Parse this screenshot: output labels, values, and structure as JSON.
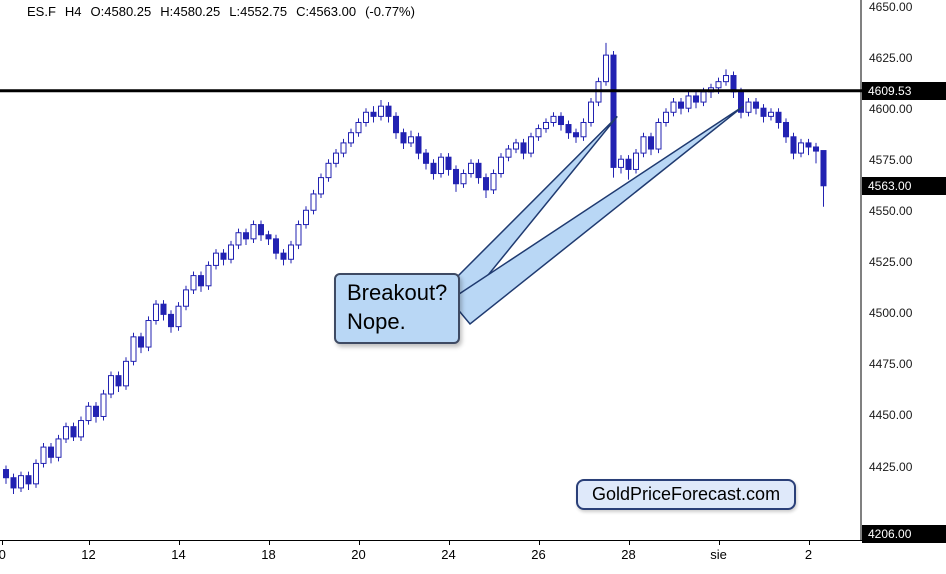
{
  "header": {
    "symbol": "ES.F",
    "timeframe": "H4",
    "open": "O:4580.25",
    "high": "H:4580.25",
    "low": "L:4552.75",
    "close": "C:4563.00",
    "change": "(-0.77%)"
  },
  "annotation": {
    "line1": "Breakout?",
    "line2": "Nope."
  },
  "watermark": "GoldPriceForecast.com",
  "price_markers": [
    {
      "type": "resistance",
      "label": "4609.53",
      "value": 4609.53
    },
    {
      "type": "last",
      "label": "4563.00",
      "value": 4563.0
    },
    {
      "type": "bottom",
      "label": "4206.00",
      "value": 4206.0
    }
  ],
  "colors": {
    "candle": "#2222b2",
    "candle_up_fill": "#ffffff",
    "marker_bg": "#000000",
    "marker_text": "#ffffff",
    "callout_fill": "#b9d7f5",
    "callout_border": "#3e4a63",
    "pointer_stroke": "#1f3a70",
    "resistance": "#000000"
  },
  "chart_data": {
    "type": "candlestick",
    "title": "ES.F H4 with resistance at 4609.53 — failed breakout annotation",
    "symbol": "ES.F",
    "timeframe": "H4",
    "ylim": [
      4389,
      4654
    ],
    "resistance_level": 4609.53,
    "last_price": 4563.0,
    "yticks": [
      {
        "label": "4650.00",
        "value": 4650
      },
      {
        "label": "4625.00",
        "value": 4625
      },
      {
        "label": "4600.00",
        "value": 4600
      },
      {
        "label": "4575.00",
        "value": 4575
      },
      {
        "label": "4550.00",
        "value": 4550
      },
      {
        "label": "4525.00",
        "value": 4525
      },
      {
        "label": "4500.00",
        "value": 4500
      },
      {
        "label": "4475.00",
        "value": 4475
      },
      {
        "label": "4450.00",
        "value": 4450
      },
      {
        "label": "4425.00",
        "value": 4425
      }
    ],
    "xticks": [
      {
        "label": "0",
        "index": -0.5
      },
      {
        "label": "12",
        "index": 11
      },
      {
        "label": "14",
        "index": 23
      },
      {
        "label": "18",
        "index": 35
      },
      {
        "label": "20",
        "index": 47
      },
      {
        "label": "24",
        "index": 59
      },
      {
        "label": "26",
        "index": 71
      },
      {
        "label": "28",
        "index": 83
      },
      {
        "label": "sie",
        "index": 95
      },
      {
        "label": "2",
        "index": 107
      }
    ],
    "pointer_targets": [
      {
        "index": 81.5,
        "price": 4597
      },
      {
        "index": 98.3,
        "price": 4602
      }
    ],
    "candles": [
      [
        4424,
        4426,
        4417,
        4420
      ],
      [
        4420,
        4422,
        4412,
        4415
      ],
      [
        4415,
        4423,
        4413,
        4421
      ],
      [
        4421,
        4423,
        4414,
        4417
      ],
      [
        4417,
        4429,
        4415,
        4427
      ],
      [
        4427,
        4437,
        4425,
        4435
      ],
      [
        4435,
        4437,
        4427,
        4430
      ],
      [
        4430,
        4441,
        4428,
        4439
      ],
      [
        4439,
        4447,
        4437,
        4445
      ],
      [
        4445,
        4447,
        4438,
        4440
      ],
      [
        4440,
        4450,
        4438,
        4448
      ],
      [
        4448,
        4457,
        4446,
        4455
      ],
      [
        4455,
        4457,
        4447,
        4450
      ],
      [
        4450,
        4463,
        4448,
        4461
      ],
      [
        4461,
        4472,
        4459,
        4470
      ],
      [
        4470,
        4472,
        4462,
        4465
      ],
      [
        4465,
        4479,
        4463,
        4477
      ],
      [
        4477,
        4491,
        4475,
        4489
      ],
      [
        4489,
        4491,
        4481,
        4484
      ],
      [
        4484,
        4499,
        4482,
        4497
      ],
      [
        4497,
        4507,
        4495,
        4505
      ],
      [
        4505,
        4507,
        4497,
        4500
      ],
      [
        4500,
        4502,
        4491,
        4494
      ],
      [
        4494,
        4506,
        4492,
        4504
      ],
      [
        4504,
        4514,
        4502,
        4512
      ],
      [
        4512,
        4521,
        4510,
        4519
      ],
      [
        4519,
        4521,
        4511,
        4514
      ],
      [
        4514,
        4526,
        4512,
        4524
      ],
      [
        4524,
        4532,
        4522,
        4530
      ],
      [
        4530,
        4532,
        4524,
        4527
      ],
      [
        4527,
        4536,
        4525,
        4534
      ],
      [
        4534,
        4542,
        4532,
        4540
      ],
      [
        4540,
        4542,
        4534,
        4537
      ],
      [
        4537,
        4546,
        4535,
        4544
      ],
      [
        4544,
        4546,
        4536,
        4539
      ],
      [
        4539,
        4541,
        4534,
        4537
      ],
      [
        4537,
        4539,
        4527,
        4530
      ],
      [
        4530,
        4532,
        4524,
        4527
      ],
      [
        4527,
        4536,
        4525,
        4534
      ],
      [
        4534,
        4546,
        4532,
        4544
      ],
      [
        4544,
        4553,
        4542,
        4551
      ],
      [
        4551,
        4561,
        4549,
        4559
      ],
      [
        4559,
        4569,
        4557,
        4567
      ],
      [
        4567,
        4576,
        4565,
        4574
      ],
      [
        4574,
        4581,
        4572,
        4579
      ],
      [
        4579,
        4586,
        4577,
        4584
      ],
      [
        4584,
        4591,
        4582,
        4589
      ],
      [
        4589,
        4596,
        4587,
        4594
      ],
      [
        4594,
        4601,
        4592,
        4599
      ],
      [
        4599,
        4602,
        4594,
        4597
      ],
      [
        4597,
        4605,
        4595,
        4602
      ],
      [
        4602,
        4604,
        4594,
        4597
      ],
      [
        4597,
        4599,
        4586,
        4589
      ],
      [
        4589,
        4591,
        4581,
        4584
      ],
      [
        4584,
        4590,
        4582,
        4587
      ],
      [
        4587,
        4589,
        4576,
        4579
      ],
      [
        4579,
        4581,
        4571,
        4574
      ],
      [
        4574,
        4576,
        4566,
        4569
      ],
      [
        4569,
        4579,
        4567,
        4577
      ],
      [
        4577,
        4579,
        4568,
        4571
      ],
      [
        4571,
        4573,
        4560,
        4564
      ],
      [
        4564,
        4571,
        4562,
        4569
      ],
      [
        4569,
        4576,
        4567,
        4574
      ],
      [
        4574,
        4576,
        4564,
        4567
      ],
      [
        4567,
        4569,
        4557,
        4561
      ],
      [
        4561,
        4571,
        4559,
        4569
      ],
      [
        4569,
        4579,
        4567,
        4577
      ],
      [
        4577,
        4583,
        4575,
        4581
      ],
      [
        4581,
        4586,
        4579,
        4584
      ],
      [
        4584,
        4586,
        4576,
        4579
      ],
      [
        4579,
        4589,
        4577,
        4587
      ],
      [
        4587,
        4593,
        4585,
        4591
      ],
      [
        4591,
        4596,
        4589,
        4594
      ],
      [
        4594,
        4599,
        4592,
        4597
      ],
      [
        4597,
        4599,
        4590,
        4593
      ],
      [
        4593,
        4595,
        4586,
        4589
      ],
      [
        4589,
        4591,
        4584,
        4587
      ],
      [
        4587,
        4596,
        4585,
        4594
      ],
      [
        4594,
        4606,
        4592,
        4604
      ],
      [
        4604,
        4616,
        4602,
        4614
      ],
      [
        4614,
        4633,
        4612,
        4627
      ],
      [
        4627,
        4629,
        4567,
        4572
      ],
      [
        4572,
        4578,
        4569,
        4576
      ],
      [
        4576,
        4578,
        4566,
        4571
      ],
      [
        4571,
        4581,
        4569,
        4579
      ],
      [
        4579,
        4589,
        4577,
        4587
      ],
      [
        4587,
        4589,
        4578,
        4581
      ],
      [
        4581,
        4596,
        4579,
        4594
      ],
      [
        4594,
        4601,
        4592,
        4599
      ],
      [
        4599,
        4606,
        4597,
        4604
      ],
      [
        4604,
        4606,
        4598,
        4601
      ],
      [
        4601,
        4609,
        4599,
        4607
      ],
      [
        4607,
        4609,
        4601,
        4604
      ],
      [
        4604,
        4611,
        4602,
        4609
      ],
      [
        4609,
        4613,
        4606,
        4611
      ],
      [
        4611,
        4616,
        4608,
        4614
      ],
      [
        4614,
        4620,
        4612,
        4617
      ],
      [
        4617,
        4619,
        4606,
        4609
      ],
      [
        4609,
        4611,
        4596,
        4599
      ],
      [
        4599,
        4606,
        4597,
        4604
      ],
      [
        4604,
        4606,
        4598,
        4601
      ],
      [
        4601,
        4603,
        4594,
        4597
      ],
      [
        4597,
        4601,
        4595,
        4599
      ],
      [
        4599,
        4601,
        4591,
        4594
      ],
      [
        4594,
        4596,
        4584,
        4587
      ],
      [
        4587,
        4589,
        4576,
        4579
      ],
      [
        4579,
        4586,
        4577,
        4584
      ],
      [
        4584,
        4586,
        4578,
        4582
      ],
      [
        4582,
        4584,
        4574,
        4580
      ],
      [
        4580.25,
        4580.25,
        4552.75,
        4563
      ]
    ]
  }
}
